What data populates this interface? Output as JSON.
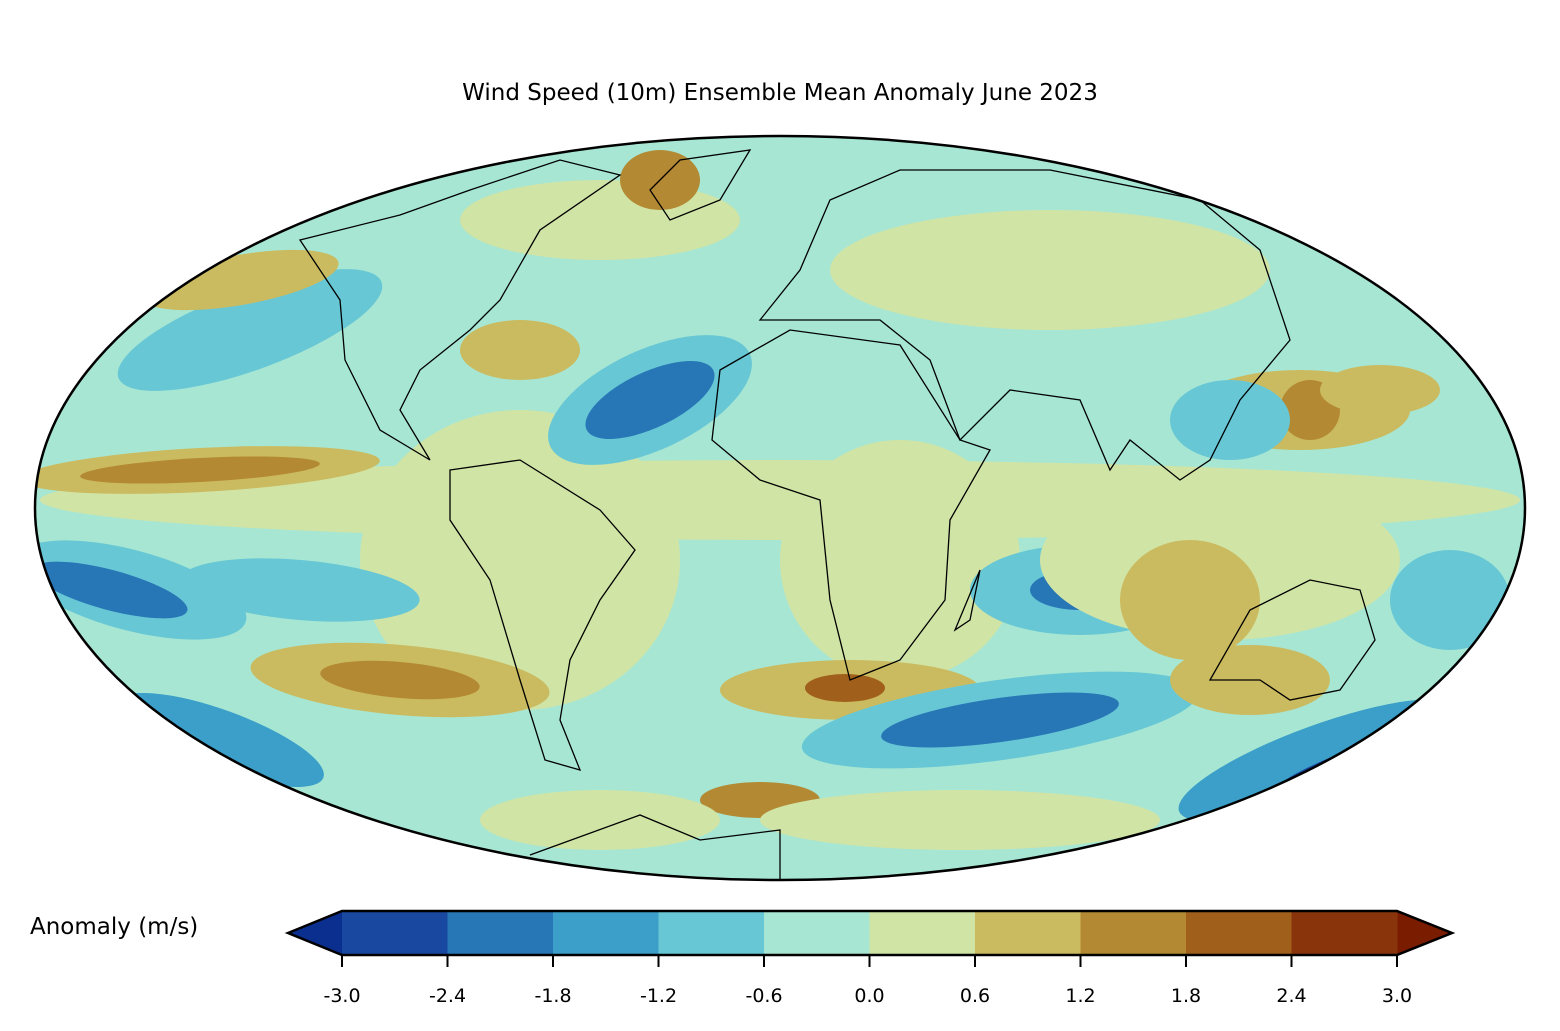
{
  "title": "Wind Speed (10m) Ensemble Mean Anomaly June 2023",
  "projection": "Mollweide",
  "colorbar": {
    "label": "Anomaly (m/s)",
    "ticks": [
      "-3.0",
      "-2.4",
      "-1.8",
      "-1.2",
      "-0.6",
      "0.0",
      "0.6",
      "1.2",
      "1.8",
      "2.4",
      "3.0"
    ],
    "levels": [
      -3.0,
      -2.4,
      -1.8,
      -1.2,
      -0.6,
      0.0,
      0.6,
      1.2,
      1.8,
      2.4,
      3.0
    ],
    "colors": [
      "#1848a0",
      "#2776b6",
      "#3b9fc9",
      "#67c7d5",
      "#a7e6d3",
      "#d0e4a6",
      "#cbbb60",
      "#b38a33",
      "#a0601c",
      "#8a340c"
    ],
    "under_color": "#0a2f8f",
    "over_color": "#7a1c00",
    "extend": "both"
  }
}
